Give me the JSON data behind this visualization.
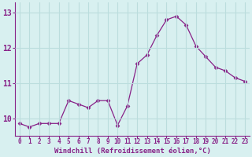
{
  "x": [
    0,
    1,
    2,
    3,
    4,
    5,
    6,
    7,
    8,
    9,
    10,
    11,
    12,
    13,
    14,
    15,
    16,
    17,
    18,
    19,
    20,
    21,
    22,
    23
  ],
  "y": [
    9.85,
    9.75,
    9.85,
    9.85,
    9.85,
    10.5,
    10.4,
    10.3,
    10.5,
    10.5,
    9.8,
    10.35,
    11.55,
    11.8,
    12.35,
    12.8,
    12.9,
    12.65,
    12.05,
    11.75,
    11.45,
    11.35,
    11.15,
    11.05
  ],
  "line_color": "#882288",
  "marker": "D",
  "marker_size": 2.5,
  "bg_color": "#d8f0f0",
  "grid_color": "#bbdddd",
  "xlabel": "Windchill (Refroidissement éolien,°C)",
  "ylim": [
    9.5,
    13.3
  ],
  "xlim": [
    -0.5,
    23.5
  ],
  "yticks": [
    10,
    11,
    12,
    13
  ],
  "ytick_labels": [
    "10",
    "11",
    "12",
    "13"
  ],
  "xticks": [
    0,
    1,
    2,
    3,
    4,
    5,
    6,
    7,
    8,
    9,
    10,
    11,
    12,
    13,
    14,
    15,
    16,
    17,
    18,
    19,
    20,
    21,
    22,
    23
  ],
  "tick_color": "#882288",
  "label_color": "#882288",
  "axis_color": "#882288",
  "tick_fontsize": 5.5,
  "ytick_fontsize": 7.0,
  "xlabel_fontsize": 6.5
}
